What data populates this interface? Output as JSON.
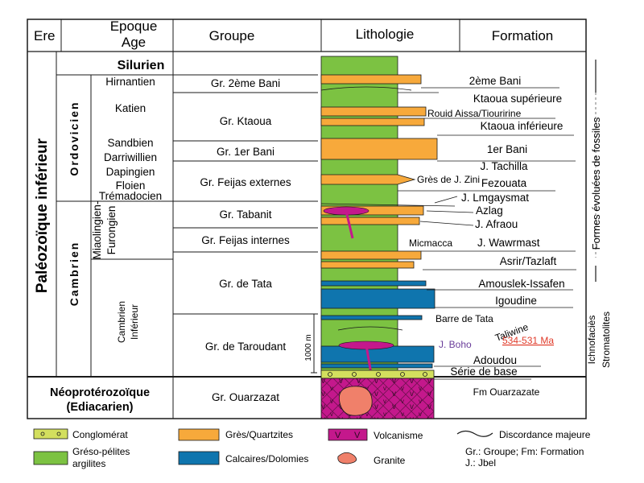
{
  "header": {
    "ere": "Ere",
    "epoque_line1": "Epoque",
    "epoque_line2": "Age",
    "groupe": "Groupe",
    "lithologie": "Lithologie",
    "formation": "Formation"
  },
  "era": {
    "paleozoique": "Paléozoïque inférieur",
    "neoproterozoique_line1": "Néoprotérozoïque",
    "neoproterozoique_line2": "(Ediacarien)"
  },
  "periods": {
    "silurien": "Silurien",
    "ordovicien": "Ordovicien",
    "cambrien": "Cambrien"
  },
  "ages": {
    "hirnantien": "Hirnantien",
    "katien": "Katien",
    "sandbien": "Sandbien",
    "darriwillien": "Darriwillien",
    "dapingien": "Dapingien",
    "floien": "Floien",
    "tremadocien": "Trémadocien",
    "miaolingien_line1": "Miaolingien-",
    "miaolingien_line2": "Furongien",
    "cambrien_inf_line1": "Cambrien",
    "cambrien_inf_line2": "Inférieur"
  },
  "groups": {
    "bani2": "Gr. 2ème Bani",
    "ktaoua": "Gr. Ktaoua",
    "bani1": "Gr. 1er Bani",
    "feijas_ext": "Gr. Feijas externes",
    "tabanit": "Gr. Tabanit",
    "feijas_int": "Gr. Feijas internes",
    "tata": "Gr. de Tata",
    "taroudant": "Gr. de Taroudant",
    "ouarzazat": "Gr. Ouarzazat"
  },
  "formations": {
    "bani2": "2ème Bani",
    "ktaoua_sup": "Ktaoua supérieure",
    "rouid": "Rouid Aissa/Tiouririne",
    "ktaoua_inf": "Ktaoua inférieure",
    "bani1": "1er Bani",
    "tachilla": "J. Tachilla",
    "zini": "Grès de J. Zini",
    "fezouata": "Fezouata",
    "lmgaysmat": "J. Lmgaysmat",
    "azlag": "Azlag",
    "afraou": "J. Afraou",
    "micmacca": "Micmacca",
    "wawrmast": "J. Wawrmast",
    "asrir": "Asrir/Tazlaft",
    "amouslek": "Amouslek-Issafen",
    "igoudine": "Igoudine",
    "barre_tata": "Barre de Tata",
    "taliwine": "Taliwine",
    "age_range": "534-531 Ma",
    "boho": "J. Boho",
    "adoudou": "Adoudou",
    "serie_base": "Série de base",
    "fm_ouarzazate": "Fm Ouarzazate"
  },
  "scale_label": "1000 m",
  "side_labels": {
    "fossiles": "Formes évoluées de fossiles",
    "ichnofacies": "Ichnofaciès",
    "stromatolites": "Stromatolites"
  },
  "legend": {
    "conglomerat": "Conglomérat",
    "greso_line1": "Gréso-pélites",
    "greso_line2": "argilites",
    "gres": "Grès/Quartzites",
    "calcaires": "Calcaires/Dolomies",
    "volcanisme": "Volcanisme",
    "granite": "Granite",
    "discordance": "Discordance majeure",
    "abbr_line1": "Gr.: Groupe; Fm: Formation",
    "abbr_line2": "J.: Jbel"
  },
  "colors": {
    "green": "#7cc242",
    "orange": "#f7a93b",
    "blue": "#0f75ae",
    "magenta": "#c4188c",
    "granite": "#f0806a",
    "conglomerate": "#d3df5e",
    "age_red": "#e03b2a",
    "boho_purple": "#6a3d9a"
  }
}
